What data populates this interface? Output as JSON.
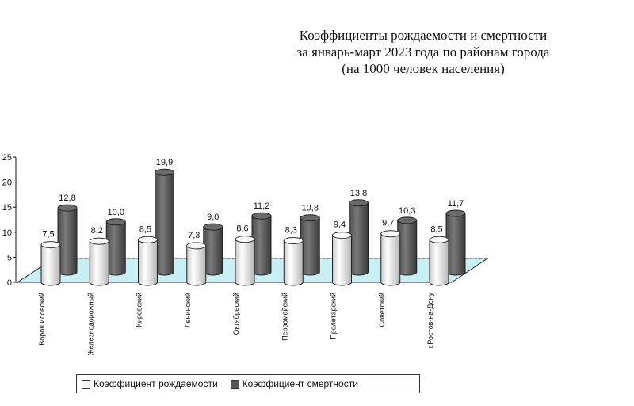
{
  "chart_data": {
    "type": "bar",
    "title": [
      "Коэффициенты рождаемости и смертности",
      "за январь-март 2023 года по районам города",
      "(на 1000 человек населения)"
    ],
    "categories": [
      "Ворошиловский",
      "Железнодорожный",
      "Кировский",
      "Ленинский",
      "Октябрьский",
      "Первомайский",
      "Пролетарский",
      "Советский",
      "г.Ростов-на-Дону"
    ],
    "series": [
      {
        "name": "Коэффициент рождаемости",
        "values": [
          7.5,
          8.2,
          8.5,
          7.3,
          8.6,
          8.3,
          9.4,
          9.7,
          8.5
        ],
        "labels": [
          "7,5",
          "8,2",
          "8,5",
          "7,3",
          "8,6",
          "8,3",
          "9,4",
          "9,7",
          "8,5"
        ],
        "color": "#f4f4f4"
      },
      {
        "name": "Коэффициент смертности",
        "values": [
          12.8,
          10.0,
          19.9,
          9.0,
          11.2,
          10.8,
          13.8,
          10.3,
          11.7
        ],
        "labels": [
          "12,8",
          "10,0",
          "19,9",
          "9,0",
          "11,2",
          "10,8",
          "13,8",
          "10,3",
          "11,7"
        ],
        "color": "#555555"
      }
    ],
    "y_ticks": [
      "0",
      "5",
      "10",
      "15",
      "20",
      "25"
    ],
    "ylim": [
      0,
      25
    ],
    "floor_color": "#c8f0f5",
    "legend_position": "bottom"
  }
}
